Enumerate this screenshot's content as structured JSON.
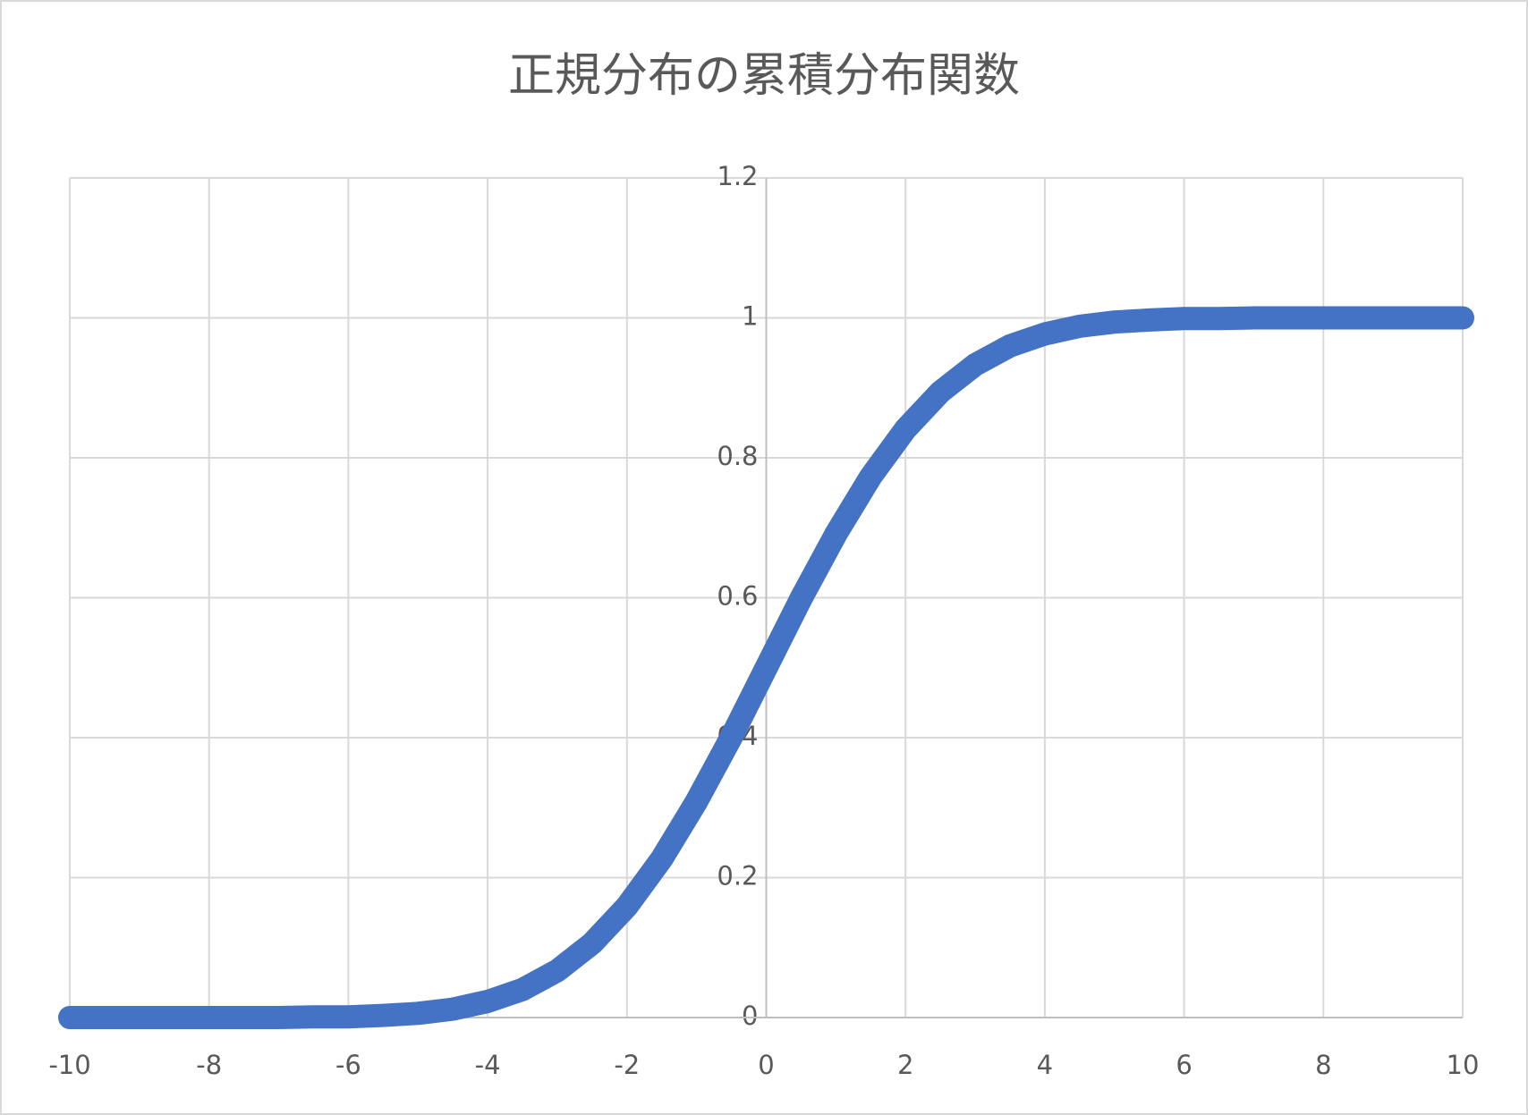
{
  "chart_data": {
    "type": "line",
    "title": "正規分布の累積分布関数",
    "x": [
      -10,
      -9.5,
      -9,
      -8.5,
      -8,
      -7.5,
      -7,
      -6.5,
      -6,
      -5.5,
      -5,
      -4.5,
      -4,
      -3.5,
      -3,
      -2.5,
      -2,
      -1.5,
      -1,
      -0.5,
      0,
      0.5,
      1,
      1.5,
      2,
      2.5,
      3,
      3.5,
      4,
      4.5,
      5,
      5.5,
      6,
      6.5,
      7,
      7.5,
      8,
      8.5,
      9,
      9.5,
      10
    ],
    "values": [
      0,
      0,
      0,
      0,
      0,
      0,
      0,
      0.001,
      0.001,
      0.003,
      0.006,
      0.012,
      0.023,
      0.04,
      0.067,
      0.106,
      0.159,
      0.227,
      0.309,
      0.401,
      0.5,
      0.599,
      0.691,
      0.773,
      0.841,
      0.894,
      0.933,
      0.96,
      0.977,
      0.988,
      0.994,
      0.997,
      0.999,
      0.999,
      1,
      1,
      1,
      1,
      1,
      1,
      1
    ],
    "color": "#4472c4",
    "xlim": [
      -10,
      10
    ],
    "xticks": [
      -10,
      -8,
      -6,
      -4,
      -2,
      0,
      2,
      4,
      6,
      8,
      10
    ],
    "ylim": [
      0,
      1.2
    ],
    "yticks": [
      0,
      0.2,
      0.4,
      0.6,
      0.8,
      1,
      1.2
    ],
    "grid": true
  }
}
